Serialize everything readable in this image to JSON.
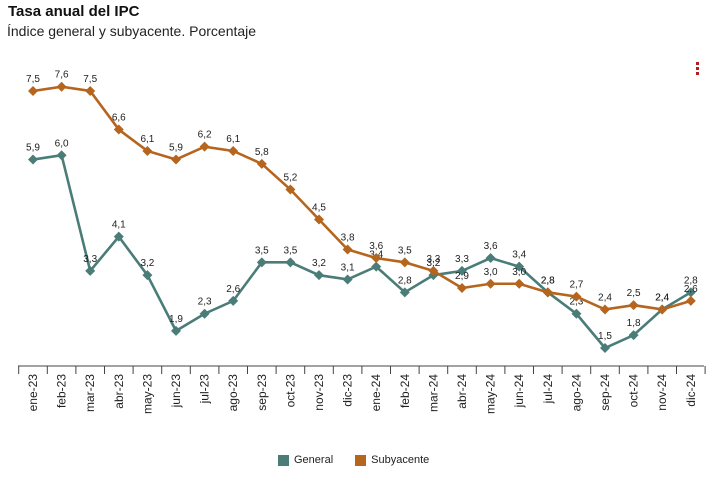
{
  "chart_data": {
    "type": "line",
    "title": "Tasa anual del IPC",
    "subtitle": "Índice general y subyacente. Porcentaje",
    "categories": [
      "ene-23",
      "feb-23",
      "mar-23",
      "abr-23",
      "may-23",
      "jun-23",
      "jul-23",
      "ago-23",
      "sep-23",
      "oct-23",
      "nov-23",
      "dic-23",
      "ene-24",
      "feb-24",
      "mar-24",
      "abr-24",
      "may-24",
      "jun-24",
      "jul-24",
      "ago-24",
      "sep-24",
      "oct-24",
      "nov-24",
      "dic-24"
    ],
    "series": [
      {
        "name": "General",
        "color": "#4a7d78",
        "values": [
          5.9,
          6.0,
          3.3,
          4.1,
          3.2,
          1.9,
          2.3,
          2.6,
          3.5,
          3.5,
          3.2,
          3.1,
          3.4,
          2.8,
          3.2,
          3.3,
          3.6,
          3.4,
          2.8,
          2.3,
          1.5,
          1.8,
          2.4,
          2.8
        ]
      },
      {
        "name": "Subyacente",
        "color": "#b5651d",
        "values": [
          7.5,
          7.6,
          7.5,
          6.6,
          6.1,
          5.9,
          6.2,
          6.1,
          5.8,
          5.2,
          4.5,
          3.8,
          3.6,
          3.5,
          3.3,
          2.9,
          3.0,
          3.0,
          2.8,
          2.7,
          2.4,
          2.5,
          2.4,
          2.6
        ]
      }
    ],
    "ylim": [
      0.5,
      8.5
    ],
    "legend": "bottom-center",
    "grid": false
  }
}
